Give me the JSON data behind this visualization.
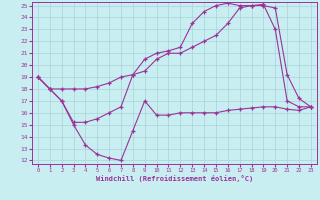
{
  "xlabel": "Windchill (Refroidissement éolien,°C)",
  "bg_color": "#c9eef1",
  "grid_color": "#a8d4d8",
  "line_color": "#993399",
  "xlim_min": -0.5,
  "xlim_max": 23.5,
  "ylim_min": 11.7,
  "ylim_max": 25.3,
  "xticks": [
    0,
    1,
    2,
    3,
    4,
    5,
    6,
    7,
    8,
    9,
    10,
    11,
    12,
    13,
    14,
    15,
    16,
    17,
    18,
    19,
    20,
    21,
    22,
    23
  ],
  "yticks": [
    12,
    13,
    14,
    15,
    16,
    17,
    18,
    19,
    20,
    21,
    22,
    23,
    24,
    25
  ],
  "line1_x": [
    0,
    1,
    2,
    3,
    4,
    5,
    6,
    7,
    8,
    9,
    10,
    11,
    12,
    13,
    14,
    15,
    16,
    17,
    18,
    19,
    20,
    21,
    22,
    23
  ],
  "line1_y": [
    19,
    18,
    17,
    15,
    13.3,
    12.5,
    12.2,
    12,
    14.5,
    17,
    15.8,
    15.8,
    16,
    16,
    16,
    16,
    16.2,
    16.3,
    16.4,
    16.5,
    16.5,
    16.3,
    16.2,
    16.5
  ],
  "line2_x": [
    0,
    1,
    2,
    3,
    4,
    5,
    6,
    7,
    8,
    9,
    10,
    11,
    12,
    13,
    14,
    15,
    16,
    17,
    18,
    19,
    20,
    21,
    22,
    23
  ],
  "line2_y": [
    19,
    18,
    18,
    18,
    18,
    18.2,
    18.5,
    19,
    19.2,
    19.5,
    20.5,
    21,
    21,
    21.5,
    22,
    22.5,
    23.5,
    24.8,
    25,
    25,
    24.8,
    19.2,
    17.2,
    16.5
  ],
  "line3_x": [
    0,
    1,
    2,
    3,
    4,
    5,
    6,
    7,
    8,
    9,
    10,
    11,
    12,
    13,
    14,
    15,
    16,
    17,
    18,
    19,
    20,
    21,
    22,
    23
  ],
  "line3_y": [
    19,
    18,
    17,
    15.2,
    15.2,
    15.5,
    16,
    16.5,
    19.2,
    20.5,
    21,
    21.2,
    21.5,
    23.5,
    24.5,
    25,
    25.2,
    25,
    25,
    25.1,
    23,
    17,
    16.5,
    16.5
  ]
}
